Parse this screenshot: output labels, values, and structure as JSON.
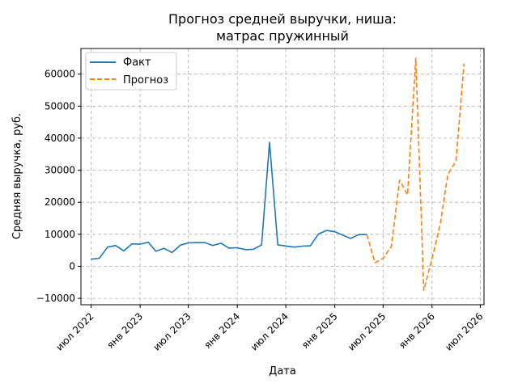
{
  "chart_data": {
    "type": "line",
    "title": "Прогноз средней выручки, ниша:",
    "subtitle": "матрас пружинный",
    "xlabel": "Дата",
    "ylabel": "Средняя выручка, руб.",
    "ylim": [
      -12000,
      68000
    ],
    "xlim": [
      "2022-05-24",
      "2026-07-15"
    ],
    "grid": true,
    "legend_position": "top-left",
    "x_ticks": [
      {
        "date": "2022-07-01",
        "label": "июл 2022"
      },
      {
        "date": "2023-01-01",
        "label": "янв 2023"
      },
      {
        "date": "2023-07-01",
        "label": "июл 2023"
      },
      {
        "date": "2024-01-01",
        "label": "янв 2024"
      },
      {
        "date": "2024-07-01",
        "label": "июл 2024"
      },
      {
        "date": "2025-01-01",
        "label": "янв 2025"
      },
      {
        "date": "2025-07-01",
        "label": "июл 2025"
      },
      {
        "date": "2026-01-01",
        "label": "янв 2026"
      },
      {
        "date": "2026-07-01",
        "label": "июл 2026"
      }
    ],
    "y_ticks": [
      {
        "value": -10000,
        "label": "−10000"
      },
      {
        "value": 0,
        "label": "0"
      },
      {
        "value": 10000,
        "label": "10000"
      },
      {
        "value": 20000,
        "label": "20000"
      },
      {
        "value": 30000,
        "label": "30000"
      },
      {
        "value": 40000,
        "label": "40000"
      },
      {
        "value": 50000,
        "label": "50000"
      },
      {
        "value": 60000,
        "label": "60000"
      }
    ],
    "series": [
      {
        "name": "Факт",
        "color": "#1f77b4",
        "style": "solid",
        "points": [
          [
            "2022-07-01",
            2200
          ],
          [
            "2022-08-01",
            2500
          ],
          [
            "2022-09-01",
            6000
          ],
          [
            "2022-10-01",
            6500
          ],
          [
            "2022-11-01",
            4800
          ],
          [
            "2022-12-01",
            7000
          ],
          [
            "2023-01-01",
            6900
          ],
          [
            "2023-02-01",
            7500
          ],
          [
            "2023-03-01",
            4700
          ],
          [
            "2023-04-01",
            5600
          ],
          [
            "2023-05-01",
            4300
          ],
          [
            "2023-06-01",
            6600
          ],
          [
            "2023-07-01",
            7300
          ],
          [
            "2023-08-01",
            7400
          ],
          [
            "2023-09-01",
            7400
          ],
          [
            "2023-10-01",
            6500
          ],
          [
            "2023-11-01",
            7200
          ],
          [
            "2023-12-01",
            5700
          ],
          [
            "2024-01-01",
            5800
          ],
          [
            "2024-02-01",
            5200
          ],
          [
            "2024-03-01",
            5300
          ],
          [
            "2024-04-01",
            6700
          ],
          [
            "2024-05-01",
            38700
          ],
          [
            "2024-06-01",
            6700
          ],
          [
            "2024-08-01",
            6000
          ],
          [
            "2024-09-01",
            6300
          ],
          [
            "2024-10-01",
            6400
          ],
          [
            "2024-11-01",
            10100
          ],
          [
            "2024-12-01",
            11200
          ],
          [
            "2025-01-01",
            10800
          ],
          [
            "2025-03-01",
            8700
          ],
          [
            "2025-04-01",
            9900
          ],
          [
            "2025-05-01",
            9900
          ]
        ]
      },
      {
        "name": "Прогноз",
        "color": "#ff7f0e",
        "style": "dashed",
        "points": [
          [
            "2025-05-01",
            9900
          ],
          [
            "2025-06-01",
            1100
          ],
          [
            "2025-07-01",
            2500
          ],
          [
            "2025-08-01",
            6200
          ],
          [
            "2025-09-01",
            26900
          ],
          [
            "2025-10-01",
            22300
          ],
          [
            "2025-11-01",
            65000
          ],
          [
            "2025-12-01",
            -7500
          ],
          [
            "2026-01-01",
            2400
          ],
          [
            "2026-02-01",
            13100
          ],
          [
            "2026-03-01",
            28600
          ],
          [
            "2026-04-01",
            32900
          ],
          [
            "2026-05-01",
            63200
          ]
        ]
      }
    ]
  }
}
